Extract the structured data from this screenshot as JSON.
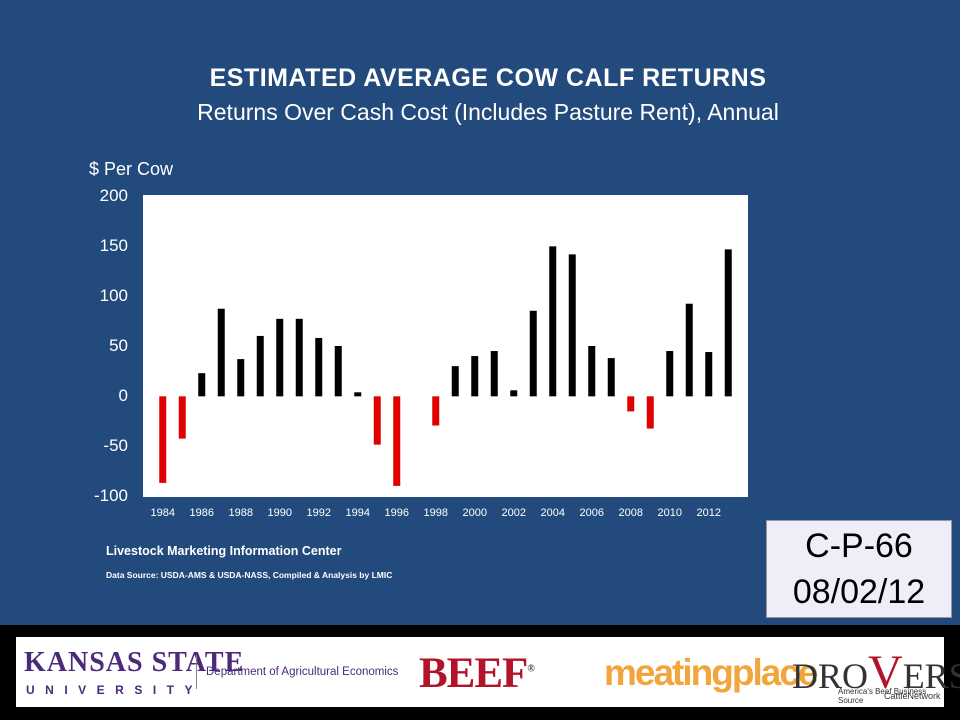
{
  "title": "ESTIMATED  AVERAGE  COW  CALF  RETURNS",
  "subtitle": "Returns Over Cash Cost (Includes Pasture Rent), Annual",
  "chart_data": {
    "type": "bar",
    "title": "ESTIMATED  AVERAGE  COW  CALF  RETURNS",
    "subtitle": "Returns Over Cash Cost (Includes Pasture Rent), Annual",
    "ylabel": "$ Per Cow",
    "ylim": [
      -100,
      200
    ],
    "yticks": [
      "200",
      "150",
      "100",
      "50",
      "0",
      "-50",
      "-100"
    ],
    "xtick_labels": [
      "1984",
      "1986",
      "1988",
      "1990",
      "1992",
      "1994",
      "1996",
      "1998",
      "2000",
      "2002",
      "2004",
      "2006",
      "2008",
      "2010",
      "2012"
    ],
    "categories": [
      "1984",
      "1985",
      "1986",
      "1987",
      "1988",
      "1989",
      "1990",
      "1991",
      "1992",
      "1993",
      "1994",
      "1995",
      "1996",
      "1997",
      "1998",
      "1999",
      "2000",
      "2001",
      "2002",
      "2003",
      "2004",
      "2005",
      "2006",
      "2007",
      "2008",
      "2009",
      "2010",
      "2011",
      "2012",
      "2013"
    ],
    "values": [
      -86,
      -42,
      23,
      87,
      37,
      60,
      77,
      77,
      58,
      50,
      4,
      -48,
      -89,
      0,
      -29,
      30,
      40,
      45,
      6,
      85,
      149,
      141,
      50,
      38,
      -15,
      -32,
      45,
      92,
      44,
      146
    ],
    "colors": {
      "positive": "#000000",
      "negative": "#e00000"
    },
    "grid": false,
    "legend": "none"
  },
  "source": {
    "line1": "Livestock Marketing Information Center",
    "line2": "Data Source:  USDA-AMS & USDA-NASS, Compiled & Analysis by LMIC"
  },
  "stamp": {
    "code": "C-P-66",
    "date": "08/02/12"
  },
  "footer": {
    "ksu_top": "KANSAS STATE",
    "ksu_bottom": "UNIVERSITY",
    "dept": "Department of Agricultural Economics",
    "beef": "BEEF",
    "meatingplace": "meatingplace",
    "drovers_left": "DRO",
    "drovers_v": "V",
    "drovers_right": "ERS",
    "drovers_sub": "America's Beef Business Source",
    "drovers_tag": "CattleNetwork"
  }
}
